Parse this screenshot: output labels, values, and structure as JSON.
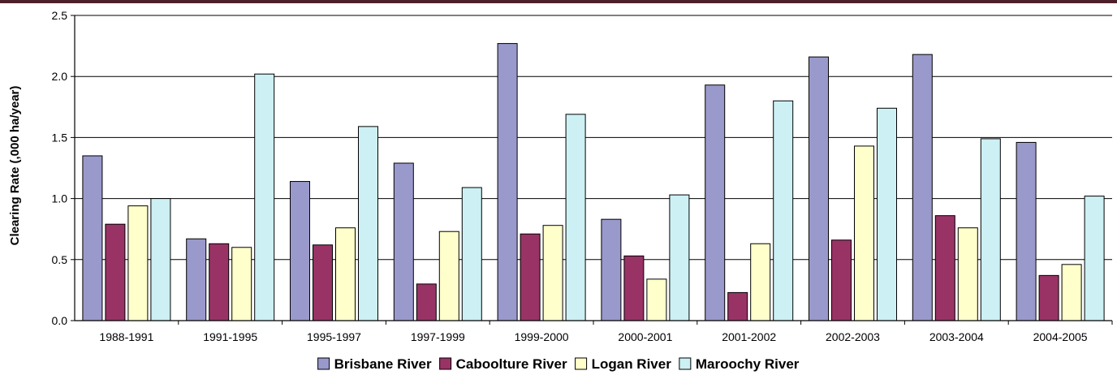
{
  "chart_data": {
    "type": "bar",
    "title": "",
    "xlabel": "",
    "ylabel": "Clearing Rate (,000 ha/year)",
    "ylim": [
      0,
      2.5
    ],
    "yticks": [
      "0.0",
      "0.5",
      "1.0",
      "1.5",
      "2.0",
      "2.5"
    ],
    "grid": true,
    "legend_position": "bottom",
    "categories": [
      "1988-1991",
      "1991-1995",
      "1995-1997",
      "1997-1999",
      "1999-2000",
      "2000-2001",
      "2001-2002",
      "2002-2003",
      "2003-2004",
      "2004-2005"
    ],
    "series": [
      {
        "name": "Brisbane River",
        "color": "#9999cc",
        "values": [
          1.35,
          0.67,
          1.14,
          1.29,
          2.27,
          0.83,
          1.93,
          2.16,
          2.18,
          1.46
        ]
      },
      {
        "name": "Caboolture River",
        "color": "#993366",
        "values": [
          0.79,
          0.63,
          0.62,
          0.3,
          0.71,
          0.53,
          0.23,
          0.66,
          0.86,
          0.37
        ]
      },
      {
        "name": "Logan River",
        "color": "#ffffcc",
        "values": [
          0.94,
          0.6,
          0.76,
          0.73,
          0.78,
          0.34,
          0.63,
          1.43,
          0.76,
          0.46
        ]
      },
      {
        "name": "Maroochy River",
        "color": "#ccf0f4",
        "values": [
          1.0,
          2.02,
          1.59,
          1.09,
          1.69,
          1.03,
          1.8,
          1.74,
          1.49,
          1.02
        ]
      }
    ]
  }
}
